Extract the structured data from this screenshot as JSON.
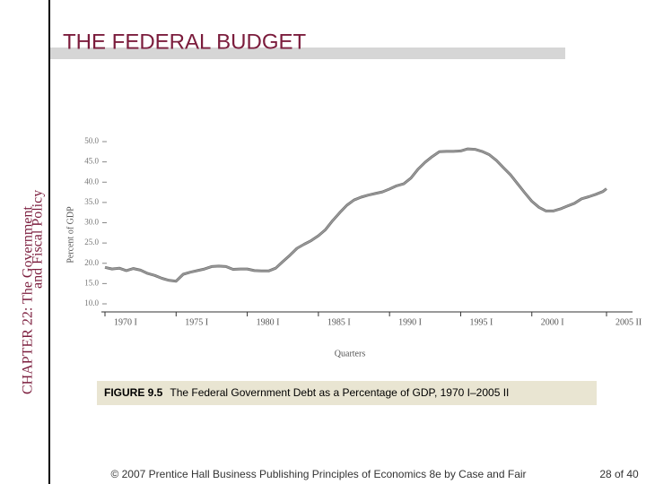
{
  "header": {
    "title": "THE FEDERAL BUDGET"
  },
  "sidebar": {
    "line1": "CHAPTER 22:  The Government",
    "line2": "and Fiscal Policy"
  },
  "caption": {
    "label": "FIGURE 9.5",
    "text": "The Federal Government Debt as a Percentage of GDP, 1970 I–2005 II"
  },
  "footer": {
    "credit": "© 2007 Prentice Hall Business Publishing   Principles of Economics 8e by Case and Fair",
    "page": "28 of 40"
  },
  "chart_data": {
    "type": "line",
    "x_label": "Quarters",
    "y_label": "Percent of GDP",
    "xlim": [
      1970,
      2005.25
    ],
    "xticks": [
      {
        "value": 1970,
        "label": "1970 I"
      },
      {
        "value": 1975,
        "label": "1975 I"
      },
      {
        "value": 1980,
        "label": "1980 I"
      },
      {
        "value": 1985,
        "label": "1985 I"
      },
      {
        "value": 1990,
        "label": "1990 I"
      },
      {
        "value": 1995,
        "label": "1995 I"
      },
      {
        "value": 2000,
        "label": "2000 I"
      },
      {
        "value": 2005.25,
        "label": "2005 II"
      }
    ],
    "ylim": [
      10,
      50
    ],
    "yticks": [
      {
        "value": 10,
        "label": "10.0"
      },
      {
        "value": 15,
        "label": "15.0"
      },
      {
        "value": 20,
        "label": "20.0"
      },
      {
        "value": 25,
        "label": "25.0"
      },
      {
        "value": 30,
        "label": "30.0"
      },
      {
        "value": 35,
        "label": "35.0"
      },
      {
        "value": 40,
        "label": "40.0"
      },
      {
        "value": 45,
        "label": "45.0"
      },
      {
        "value": 50,
        "label": "50.0"
      }
    ],
    "grid": false,
    "color": "#9a9a9a",
    "x": [
      1970,
      1970.5,
      1971,
      1971.5,
      1972,
      1972.5,
      1973,
      1973.5,
      1974,
      1974.5,
      1975,
      1975.5,
      1976,
      1976.5,
      1977,
      1977.5,
      1978,
      1978.5,
      1979,
      1979.5,
      1980,
      1980.5,
      1981,
      1981.5,
      1982,
      1982.5,
      1983,
      1983.5,
      1984,
      1984.5,
      1985,
      1985.5,
      1986,
      1986.5,
      1987,
      1987.5,
      1988,
      1988.5,
      1989,
      1989.5,
      1990,
      1990.5,
      1991,
      1991.5,
      1992,
      1992.5,
      1993,
      1993.5,
      1994,
      1994.5,
      1995,
      1995.5,
      1996,
      1996.5,
      1997,
      1997.5,
      1998,
      1998.5,
      1999,
      1999.5,
      2000,
      2000.5,
      2001,
      2001.5,
      2002,
      2002.5,
      2003,
      2003.5,
      2004,
      2004.5,
      2005,
      2005.25
    ],
    "values": [
      19,
      18.6,
      18.8,
      18.2,
      18.7,
      18.3,
      17.5,
      17,
      16.3,
      15.8,
      15.6,
      17.3,
      17.8,
      18.2,
      18.6,
      19.2,
      19.3,
      19.2,
      18.5,
      18.6,
      18.6,
      18.2,
      18.1,
      18.1,
      18.8,
      20.4,
      22,
      23.7,
      24.7,
      25.6,
      26.8,
      28.3,
      30.5,
      32.5,
      34.3,
      35.6,
      36.3,
      36.8,
      37.2,
      37.6,
      38.3,
      39.1,
      39.6,
      41,
      43.2,
      44.9,
      46.3,
      47.5,
      47.6,
      47.6,
      47.7,
      48.2,
      48.1,
      47.6,
      46.8,
      45.4,
      43.6,
      41.8,
      39.6,
      37.4,
      35.3,
      33.8,
      32.9,
      32.9,
      33.4,
      34.1,
      34.8,
      35.9,
      36.4,
      37,
      37.7,
      38.4
    ]
  }
}
